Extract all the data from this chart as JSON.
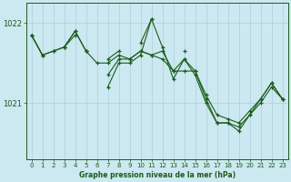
{
  "title": "Graphe pression niveau de la mer (hPa)",
  "bg_color": "#cce8f0",
  "grid_color": "#aacfdf",
  "line_color": "#1a5c1a",
  "ylim": [
    1020.3,
    1022.25
  ],
  "yticks": [
    1021,
    1022
  ],
  "xlim": [
    -0.5,
    23.5
  ],
  "xticks": [
    0,
    1,
    2,
    3,
    4,
    5,
    6,
    7,
    8,
    9,
    10,
    11,
    12,
    13,
    14,
    15,
    16,
    17,
    18,
    19,
    20,
    21,
    22,
    23
  ],
  "series": [
    [
      1021.85,
      1021.6,
      null,
      1021.7,
      1021.85,
      null,
      null,
      1021.55,
      1021.65,
      null,
      1021.75,
      1022.05,
      null,
      null,
      1021.65,
      null,
      null,
      null,
      null,
      null,
      null,
      null,
      null,
      null
    ],
    [
      1021.85,
      1021.6,
      1021.65,
      1021.7,
      1021.9,
      1021.65,
      null,
      1021.35,
      1021.55,
      1021.55,
      1021.65,
      1021.6,
      1021.65,
      1021.4,
      1021.55,
      1021.4,
      1021.05,
      1020.75,
      1020.75,
      1020.7,
      1020.85,
      1021.05,
      1021.25,
      1021.05
    ],
    [
      1021.85,
      1021.6,
      1021.65,
      1021.7,
      1021.9,
      1021.65,
      1021.5,
      1021.5,
      1021.6,
      1021.55,
      1021.65,
      1021.6,
      1021.55,
      1021.4,
      1021.4,
      1021.4,
      1021.1,
      1020.85,
      1020.8,
      1020.75,
      1020.9,
      1021.05,
      1021.25,
      1021.05
    ],
    [
      null,
      null,
      null,
      null,
      null,
      1021.65,
      null,
      1021.2,
      1021.5,
      1021.5,
      1021.6,
      1022.05,
      1021.7,
      1021.3,
      1021.55,
      1021.35,
      1021.0,
      1020.75,
      1020.75,
      1020.65,
      1020.85,
      1021.0,
      1021.2,
      1021.05
    ]
  ]
}
